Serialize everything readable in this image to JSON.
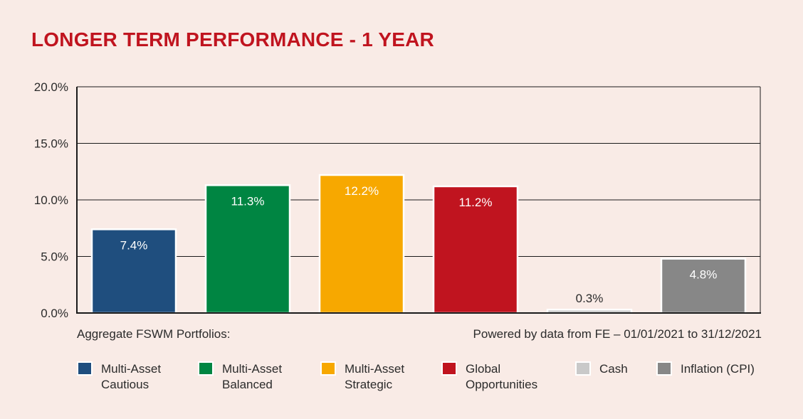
{
  "chart_data": {
    "type": "bar",
    "title": "LONGER TERM PERFORMANCE - 1 YEAR",
    "categories": [
      "Multi-Asset Cautious",
      "Multi-Asset Balanced",
      "Multi-Asset Strategic",
      "Global Opportunities",
      "Cash",
      "Inflation (CPI)"
    ],
    "values": [
      7.4,
      11.3,
      12.2,
      11.2,
      0.3,
      4.8
    ],
    "value_labels": [
      "7.4%",
      "11.3%",
      "12.2%",
      "11.2%",
      "0.3%",
      "4.8%"
    ],
    "colors": [
      "#1f4e7e",
      "#008542",
      "#f7a800",
      "#c0141f",
      "#c9c9c9",
      "#878787"
    ],
    "label_colors": [
      "#ffffff",
      "#ffffff",
      "#ffffff",
      "#ffffff",
      "#2b2b2b",
      "#ffffff"
    ],
    "ylim": [
      0,
      20
    ],
    "yticks": [
      0,
      5,
      10,
      15,
      20
    ],
    "ytick_labels": [
      "0.0%",
      "5.0%",
      "10.0%",
      "15.0%",
      "20.0%"
    ],
    "grid": true,
    "xlabel": "",
    "ylabel": ""
  },
  "captions": {
    "left": "Aggregate FSWM Portfolios:",
    "right": "Powered by data from FE – 01/01/2021 to 31/12/2021"
  },
  "legend": [
    {
      "line1": "Multi-Asset",
      "line2": "Cautious",
      "color": "#1f4e7e"
    },
    {
      "line1": "Multi-Asset",
      "line2": "Balanced",
      "color": "#008542"
    },
    {
      "line1": "Multi-Asset",
      "line2": "Strategic",
      "color": "#f7a800"
    },
    {
      "line1": "Global",
      "line2": "Opportunities",
      "color": "#c0141f"
    },
    {
      "line1": "Cash",
      "line2": "",
      "color": "#c9c9c9"
    },
    {
      "line1": "Inflation (CPI)",
      "line2": "",
      "color": "#878787"
    }
  ]
}
